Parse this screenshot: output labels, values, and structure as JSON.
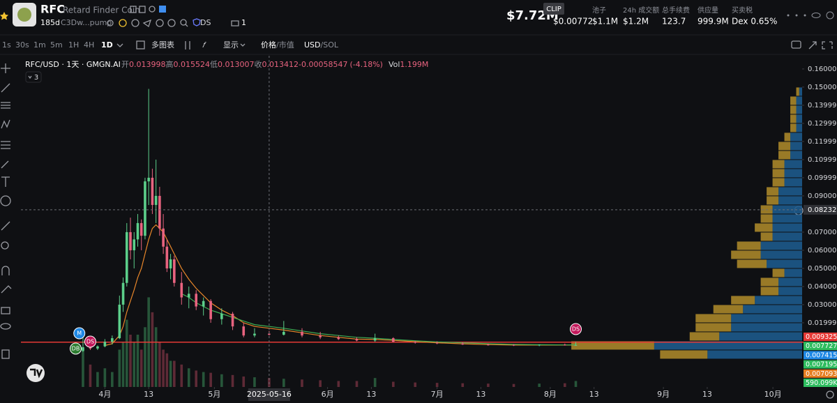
{
  "header": {
    "symbol": "RFC",
    "name": "Retard Finder Coin",
    "age": "185d",
    "address": "C3Dw...pump",
    "badge": "DS",
    "count": "1",
    "market_cap": "$7.72M",
    "tooltip": "CLIP",
    "stats": [
      {
        "value": "$0.00772"
      },
      {
        "label": "池子",
        "value": "$1.1M"
      },
      {
        "label": "24h 成交额",
        "value": "$1.2M"
      },
      {
        "label": "总手续费",
        "value": "123.7"
      },
      {
        "label": "供应量",
        "value": "999.9M"
      },
      {
        "label": "买卖税",
        "value": "Dex 0.65%"
      }
    ]
  },
  "toolbar": {
    "intervals": [
      "1s",
      "30s",
      "1m",
      "5m",
      "1H",
      "4H",
      "1D"
    ],
    "active_index": 6,
    "multi_chart": "多图表",
    "display": "显示",
    "price_mode": [
      "价格",
      "/市值"
    ],
    "currency": [
      "USD",
      "/SOL"
    ]
  },
  "chart_data": {
    "type": "candlestick",
    "legend": {
      "pair": "RFC/USD · 1天 · GMGN.AI",
      "open_label": "开",
      "high_label": "高",
      "low_label": "低",
      "close_label": "收",
      "change": -0.00058547,
      "change_pct": "(-4.18%)",
      "vol_label": "Vol",
      "vol": "1.199M",
      "indicator_count": 3,
      "index": 30
    },
    "x": [
      "2025-03-26",
      "2025-03-28",
      "2025-03-30",
      "2025-04-01",
      "2025-04-03",
      "2025-04-05",
      "2025-04-06",
      "2025-04-07",
      "2025-04-08",
      "2025-04-09",
      "2025-04-10",
      "2025-04-11",
      "2025-04-12",
      "2025-04-13",
      "2025-04-14",
      "2025-04-15",
      "2025-04-16",
      "2025-04-17",
      "2025-04-18",
      "2025-04-19",
      "2025-04-20",
      "2025-04-22",
      "2025-04-24",
      "2025-04-26",
      "2025-04-28",
      "2025-04-30",
      "2025-05-03",
      "2025-05-06",
      "2025-05-09",
      "2025-05-12",
      "2025-05-16",
      "2025-05-20",
      "2025-05-25",
      "2025-05-30",
      "2025-06-04",
      "2025-06-09",
      "2025-06-14",
      "2025-06-19",
      "2025-06-25",
      "2025-07-01",
      "2025-07-08",
      "2025-07-15",
      "2025-07-22",
      "2025-07-29",
      "2025-08-05",
      "2025-08-08"
    ],
    "open": [
      0.0045,
      0.0065,
      0.0058,
      0.007,
      0.0095,
      0.0115,
      0.03,
      0.042,
      0.07,
      0.06,
      0.066,
      0.075,
      0.068,
      0.098,
      0.1,
      0.085,
      0.09,
      0.072,
      0.062,
      0.05,
      0.055,
      0.042,
      0.034,
      0.036,
      0.029,
      0.032,
      0.022,
      0.025,
      0.018,
      0.013,
      0.013998,
      0.013412,
      0.015,
      0.013,
      0.012,
      0.011,
      0.0102,
      0.0115,
      0.0095,
      0.009,
      0.0086,
      0.008,
      0.0078,
      0.0075,
      0.0079,
      0.0077
    ],
    "high": [
      0.012,
      0.009,
      0.0075,
      0.011,
      0.013,
      0.035,
      0.045,
      0.075,
      0.078,
      0.07,
      0.08,
      0.077,
      0.1,
      0.149,
      0.105,
      0.11,
      0.095,
      0.08,
      0.066,
      0.058,
      0.057,
      0.048,
      0.04,
      0.038,
      0.034,
      0.033,
      0.028,
      0.026,
      0.02,
      0.017,
      0.015524,
      0.021,
      0.017,
      0.015,
      0.013,
      0.012,
      0.014,
      0.012,
      0.01,
      0.0098,
      0.0092,
      0.0085,
      0.0082,
      0.0081,
      0.0085,
      0.0094
    ],
    "low": [
      0.004,
      0.005,
      0.005,
      0.0065,
      0.008,
      0.011,
      0.026,
      0.04,
      0.055,
      0.05,
      0.062,
      0.06,
      0.066,
      0.085,
      0.08,
      0.075,
      0.068,
      0.058,
      0.048,
      0.044,
      0.04,
      0.03,
      0.028,
      0.027,
      0.024,
      0.02,
      0.019,
      0.016,
      0.012,
      0.012,
      0.013007,
      0.013,
      0.012,
      0.011,
      0.0105,
      0.0098,
      0.0095,
      0.0092,
      0.0085,
      0.0082,
      0.0078,
      0.0074,
      0.0072,
      0.0071,
      0.0074,
      0.0075
    ],
    "close": [
      0.0065,
      0.0058,
      0.007,
      0.0095,
      0.0115,
      0.03,
      0.042,
      0.07,
      0.06,
      0.066,
      0.075,
      0.068,
      0.098,
      0.1,
      0.085,
      0.09,
      0.072,
      0.062,
      0.05,
      0.055,
      0.042,
      0.034,
      0.036,
      0.029,
      0.032,
      0.022,
      0.025,
      0.018,
      0.013,
      0.014,
      0.013412,
      0.015,
      0.013,
      0.012,
      0.011,
      0.0102,
      0.0115,
      0.0095,
      0.009,
      0.0086,
      0.008,
      0.0078,
      0.0075,
      0.0079,
      0.0077,
      0.00772
    ],
    "volume": [
      5000000,
      3000000,
      2000000,
      2500000,
      2000000,
      5000000,
      6000000,
      9000000,
      7000000,
      6000000,
      7000000,
      5000000,
      8000000,
      12000000,
      10000000,
      8000000,
      6000000,
      5000000,
      4500000,
      3500000,
      3500000,
      3000000,
      2500000,
      2200000,
      2000000,
      1900000,
      1700000,
      1600000,
      1400000,
      1300000,
      1199000,
      1100000,
      1000000,
      900000,
      800000,
      800000,
      1200000,
      700000,
      600000,
      550000,
      500000,
      450000,
      400000,
      450000,
      500000,
      800000
    ],
    "up_color": "#5ccf8a",
    "down_color": "#e8637f",
    "up_volume_color": "#27563a",
    "down_volume_color": "#5e2a36",
    "ma": [
      {
        "color": "#e8862a",
        "values": [
          null,
          null,
          null,
          0.0075,
          0.0085,
          0.013,
          0.018,
          0.026,
          0.032,
          0.038,
          0.045,
          0.05,
          0.058,
          0.066,
          0.072,
          0.074,
          0.072,
          0.07,
          0.066,
          0.062,
          0.058,
          0.05,
          0.044,
          0.039,
          0.035,
          0.031,
          0.027,
          0.024,
          0.02,
          0.018,
          0.017,
          0.016,
          0.0145,
          0.013,
          0.012,
          0.011,
          0.0108,
          0.0103,
          0.0096,
          0.009,
          0.0084,
          0.008,
          0.0077,
          0.0077,
          0.0077,
          0.0077
        ]
      },
      {
        "color": "#3fae55",
        "values": [
          null,
          null,
          null,
          null,
          null,
          null,
          null,
          null,
          null,
          null,
          null,
          null,
          null,
          null,
          null,
          null,
          null,
          null,
          null,
          null,
          null,
          0.036,
          0.034,
          0.031,
          0.029,
          0.027,
          0.025,
          0.023,
          0.021,
          0.019,
          0.018,
          0.017,
          0.0155,
          0.014,
          0.013,
          0.012,
          0.0115,
          0.0108,
          0.0101,
          0.0095,
          0.009,
          0.0085,
          0.0081,
          0.0079,
          0.0078,
          0.0078
        ]
      }
    ],
    "xlim": [
      "2025-03-09",
      "2025-10-09"
    ],
    "xticks": [
      {
        "value": "2025-04-01",
        "label": "4月"
      },
      {
        "value": "2025-04-13",
        "label": "13"
      },
      {
        "value": "2025-05-01",
        "label": "5月"
      },
      {
        "value": "2025-06-01",
        "label": "6月"
      },
      {
        "value": "2025-06-13",
        "label": "13"
      },
      {
        "value": "2025-07-01",
        "label": "7月"
      },
      {
        "value": "2025-07-13",
        "label": "13"
      },
      {
        "value": "2025-08-01",
        "label": "8月"
      },
      {
        "value": "2025-08-13",
        "label": "13"
      },
      {
        "value": "2025-09-01",
        "label": "9月"
      },
      {
        "value": "2025-09-13",
        "label": "13"
      },
      {
        "value": "2025-10-01",
        "label": "10月"
      }
    ],
    "ylim": [
      -0.0154,
      0.1642
    ],
    "yticks": [
      {
        "value": 0.16,
        "label": "0.16000"
      },
      {
        "value": 0.15,
        "label": "0.15000"
      },
      0.13999,
      0.12999,
      0.11999,
      0.10999,
      0.099999,
      {
        "value": 0.09,
        "label": "0.090000"
      },
      {
        "value": 0.07,
        "label": "0.070000"
      },
      {
        "value": 0.06,
        "label": "0.060000"
      },
      {
        "value": 0.05,
        "label": "0.050000"
      },
      {
        "value": 0.04,
        "label": "0.040000"
      },
      {
        "value": 0.03,
        "label": "0.030000"
      },
      0.019999
    ],
    "vol_lim": [
      0,
      14000000
    ],
    "grid": false,
    "crosshair": {
      "x": "2025-05-16",
      "y": 0.082328
    },
    "price_line": {
      "value": 0.0093256,
      "color": "#e53935"
    },
    "price_tags": [
      {
        "value": 0.0093256,
        "color": "#e53935"
      },
      {
        "value": 0.0077279,
        "color": "#2ebd5f"
      },
      {
        "value": 0.0074155,
        "color": "#1e88e5"
      },
      {
        "value": 0.0071953,
        "color": "#2ebd5f"
      },
      {
        "value": 0.0070938,
        "color": "#e67e22"
      },
      {
        "value": {
          "value": 590099,
          "label": "590.099K"
        },
        "color": "#2ebd5f"
      }
    ],
    "markers": [
      {
        "label": "M",
        "date": "2025-03-25",
        "color": "#1e88e5"
      },
      {
        "label": "DS",
        "date": "2025-03-28",
        "color": "#c2185b"
      },
      {
        "label": "DB",
        "date": "2025-03-24",
        "color": "#2e7d32"
      },
      {
        "label": "DS",
        "date": "2025-08-08",
        "color": "#c2185b"
      }
    ],
    "volume_profile": {
      "bins": [
        0,
        0.005,
        0.01,
        0.015,
        0.02,
        0.025,
        0.03,
        0.035,
        0.04,
        0.045,
        0.05,
        0.055,
        0.06,
        0.065,
        0.07,
        0.075,
        0.08,
        0.085,
        0.09,
        0.095,
        0.1,
        0.105,
        0.11,
        0.115,
        0.12,
        0.125,
        0.13,
        0.135,
        0.14,
        0.145,
        0.15
      ],
      "buy": [
        16,
        25,
        14,
        12,
        12,
        10,
        8,
        4,
        4,
        3,
        6,
        7,
        7,
        5,
        5,
        5,
        5,
        4,
        4,
        3,
        3,
        3,
        2,
        2,
        2,
        1,
        1,
        1,
        1,
        0.5
      ],
      "sell": [
        8,
        14,
        5,
        6,
        6,
        5,
        4,
        3,
        3,
        2,
        5,
        5,
        4,
        2,
        3,
        2,
        2,
        2,
        2,
        2,
        2,
        2,
        2,
        2,
        1,
        1,
        1,
        1,
        1,
        0.5
      ],
      "buy_color": "#1d5a8c",
      "sell_color": "#a8862a",
      "lim": [
        0,
        132
      ]
    }
  }
}
